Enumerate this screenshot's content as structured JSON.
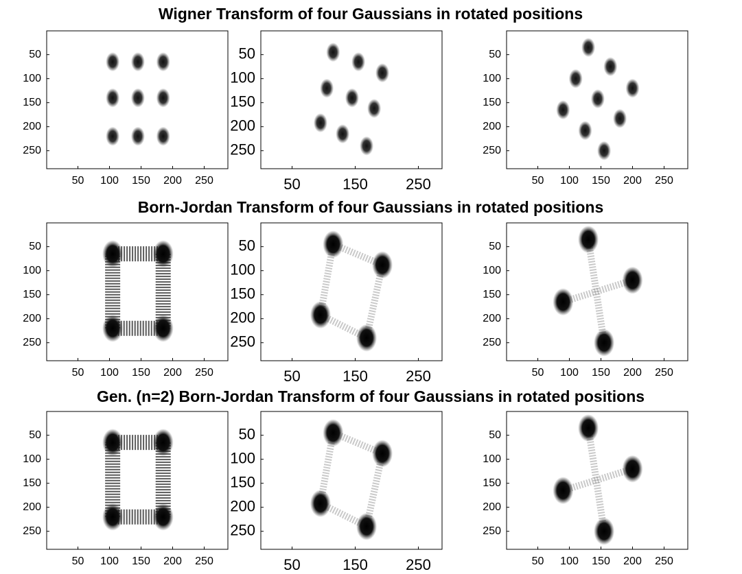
{
  "chart_data": [
    {
      "type": "image",
      "title": "Wigner Transform of four Gaussians in rotated positions",
      "xlim": [
        0.5,
        287.5
      ],
      "ylim": [
        0.5,
        287.5
      ],
      "xticks": [
        50,
        100,
        150,
        200,
        250
      ],
      "yticks": [
        50,
        100,
        150,
        200,
        250
      ],
      "spots": {
        "x": [
          105,
          145,
          185,
          105,
          145,
          185,
          105,
          145,
          185
        ],
        "y": [
          65,
          65,
          65,
          140,
          140,
          140,
          220,
          220,
          220
        ]
      }
    },
    {
      "type": "image",
      "xlim": [
        0.5,
        287.5
      ],
      "ylim": [
        0.5,
        287.5
      ],
      "xticks": [
        50,
        150,
        250
      ],
      "yticks": [
        50,
        100,
        150,
        200,
        250
      ],
      "spots": {
        "x": [
          115,
          155,
          193,
          105,
          145,
          180,
          95,
          130,
          168
        ],
        "y": [
          45,
          65,
          88,
          120,
          140,
          162,
          192,
          215,
          240
        ]
      }
    },
    {
      "type": "image",
      "xlim": [
        0.5,
        287.5
      ],
      "ylim": [
        0.5,
        287.5
      ],
      "xticks": [
        50,
        100,
        150,
        200,
        250
      ],
      "yticks": [
        50,
        100,
        150,
        200,
        250
      ],
      "spots": {
        "x": [
          130,
          165,
          200,
          110,
          145,
          180,
          90,
          125,
          155
        ],
        "y": [
          35,
          75,
          120,
          100,
          142,
          183,
          165,
          208,
          250
        ]
      }
    },
    {
      "type": "image",
      "title": "Born-Jordan Transform of four Gaussians in rotated positions",
      "xlim": [
        0.5,
        287.5
      ],
      "ylim": [
        0.5,
        287.5
      ],
      "xticks": [
        50,
        100,
        150,
        200,
        250
      ],
      "yticks": [
        50,
        100,
        150,
        200,
        250
      ],
      "spots": {
        "x": [
          105,
          185,
          185,
          105
        ],
        "y": [
          65,
          65,
          220,
          220
        ]
      },
      "links": [
        [
          0,
          1
        ],
        [
          1,
          2
        ],
        [
          2,
          3
        ],
        [
          3,
          0
        ]
      ]
    },
    {
      "type": "image",
      "xlim": [
        0.5,
        287.5
      ],
      "ylim": [
        0.5,
        287.5
      ],
      "xticks": [
        50,
        150,
        250
      ],
      "yticks": [
        50,
        100,
        150,
        200,
        250
      ],
      "spots": {
        "x": [
          115,
          193,
          168,
          95
        ],
        "y": [
          45,
          88,
          240,
          192
        ]
      },
      "links": [
        [
          0,
          1
        ],
        [
          1,
          2
        ],
        [
          2,
          3
        ],
        [
          3,
          0
        ]
      ]
    },
    {
      "type": "image",
      "xlim": [
        0.5,
        287.5
      ],
      "ylim": [
        0.5,
        287.5
      ],
      "xticks": [
        50,
        100,
        150,
        200,
        250
      ],
      "yticks": [
        50,
        100,
        150,
        200,
        250
      ],
      "spots": {
        "x": [
          130,
          200,
          155,
          90
        ],
        "y": [
          35,
          120,
          250,
          165
        ]
      },
      "links": [
        [
          0,
          2
        ],
        [
          1,
          3
        ]
      ]
    },
    {
      "type": "image",
      "title": "Gen. (n=2) Born-Jordan Transform of four Gaussians in rotated positions",
      "xlim": [
        0.5,
        287.5
      ],
      "ylim": [
        0.5,
        287.5
      ],
      "xticks": [
        50,
        100,
        150,
        200,
        250
      ],
      "yticks": [
        50,
        100,
        150,
        200,
        250
      ],
      "spots": {
        "x": [
          105,
          185,
          185,
          105
        ],
        "y": [
          65,
          65,
          220,
          220
        ]
      },
      "links": [
        [
          0,
          1
        ],
        [
          1,
          2
        ],
        [
          2,
          3
        ],
        [
          3,
          0
        ]
      ]
    },
    {
      "type": "image",
      "xlim": [
        0.5,
        287.5
      ],
      "ylim": [
        0.5,
        287.5
      ],
      "xticks": [
        50,
        150,
        250
      ],
      "yticks": [
        50,
        100,
        150,
        200,
        250
      ],
      "spots": {
        "x": [
          115,
          193,
          168,
          95
        ],
        "y": [
          45,
          88,
          240,
          192
        ]
      },
      "links": [
        [
          0,
          1
        ],
        [
          1,
          2
        ],
        [
          2,
          3
        ],
        [
          3,
          0
        ]
      ]
    },
    {
      "type": "image",
      "xlim": [
        0.5,
        287.5
      ],
      "ylim": [
        0.5,
        287.5
      ],
      "xticks": [
        50,
        100,
        150,
        200,
        250
      ],
      "yticks": [
        50,
        100,
        150,
        200,
        250
      ],
      "spots": {
        "x": [
          130,
          200,
          155,
          90
        ],
        "y": [
          35,
          120,
          250,
          165
        ]
      },
      "links": [
        [
          0,
          2
        ],
        [
          1,
          3
        ]
      ]
    }
  ]
}
